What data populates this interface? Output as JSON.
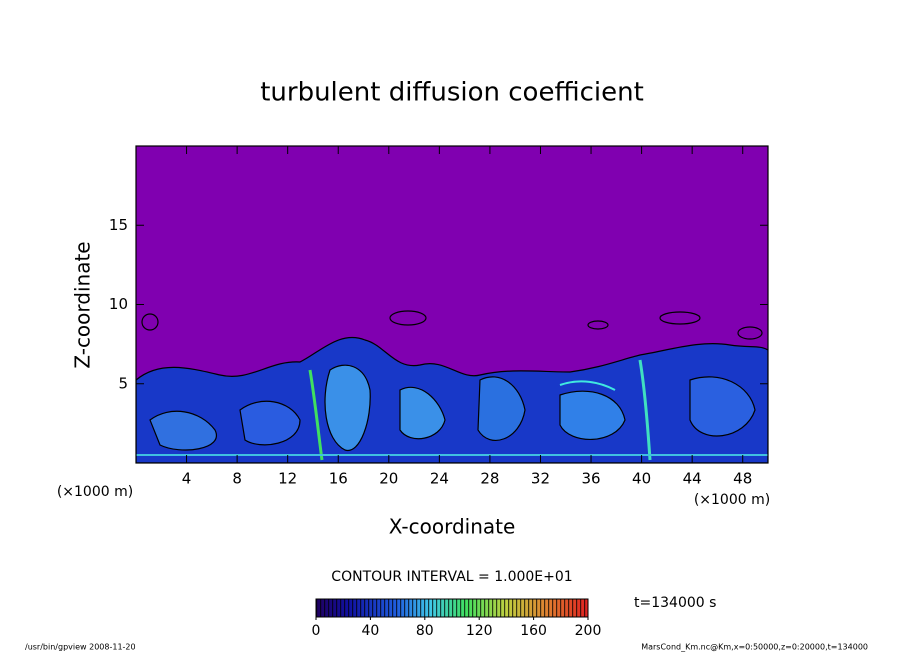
{
  "chart_data": {
    "type": "contour",
    "title": "turbulent diffusion coefficient",
    "xlabel": "X-coordinate",
    "ylabel": "Z-coordinate",
    "units_labels": [
      "(×1000 m)",
      "(×1000 m)"
    ],
    "xlim": [
      0,
      50
    ],
    "xticks": [
      4,
      8,
      12,
      16,
      20,
      24,
      28,
      32,
      36,
      40,
      44,
      48
    ],
    "ylim": [
      0,
      20
    ],
    "yticks": [
      5,
      10,
      15
    ],
    "background_color": "#8000b0",
    "contour_interval_label": "CONTOUR INTERVAL = 1.000E+01",
    "time_label": "t=134000 s",
    "clim": [
      0,
      200
    ],
    "cticks": [
      0,
      40,
      80,
      120,
      160,
      200
    ],
    "footer_left": "/usr/bin/gpview   2008-11-20",
    "footer_right": "MarsCond_Km.nc@Km,x=0:50000,z=0:20000,t=134000"
  }
}
